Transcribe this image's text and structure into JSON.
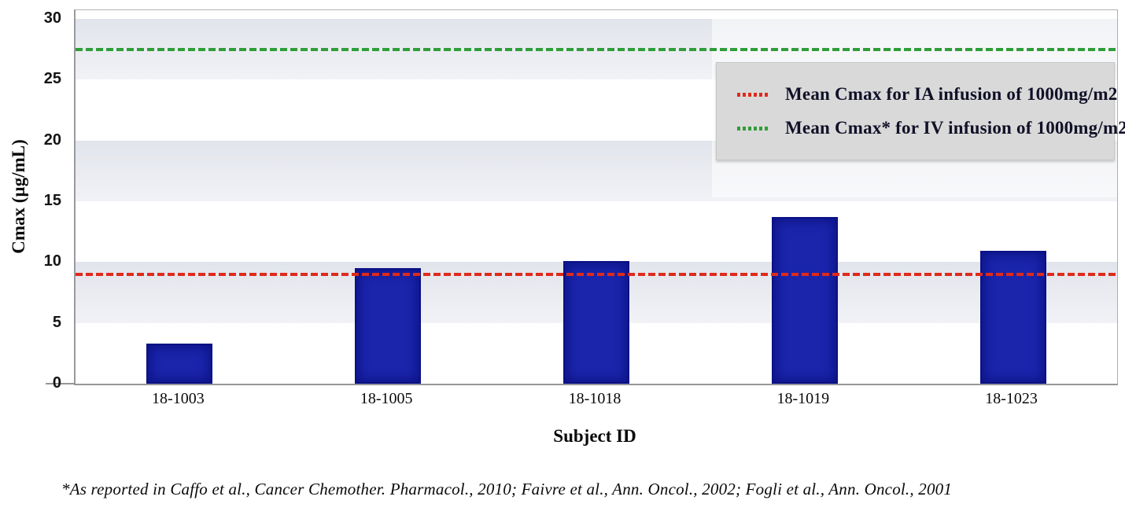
{
  "chart_data": {
    "type": "bar",
    "title": "",
    "xlabel": "Subject ID",
    "ylabel": "Cmax (µg/mL)",
    "categories": [
      "18-1003",
      "18-1005",
      "18-1018",
      "18-1019",
      "18-1023"
    ],
    "values": [
      3.3,
      9.5,
      10.1,
      13.7,
      10.9
    ],
    "ylim": [
      0,
      30
    ],
    "yticks": [
      0,
      5,
      10,
      15,
      20,
      25,
      30
    ],
    "grid": "alternating horizontal gray bands at 5-10, 15-20, 25-30",
    "bar_color": "#1b25ac",
    "band_color": "#e6e8ee",
    "legend_position": "top-right",
    "legend_background": "#d9d9d9",
    "reference_lines": [
      {
        "name": "ia-mean",
        "value": 9,
        "color": "#df2b1c",
        "style": "dashed",
        "label": "Mean Cmax for IA infusion of 1000mg/m2"
      },
      {
        "name": "iv-mean",
        "value": 27.5,
        "color": "#2f9d39",
        "style": "dashed",
        "label": "Mean Cmax* for IV infusion of 1000mg/m2"
      }
    ]
  },
  "footnote": "*As reported in Caffo et al., Cancer Chemother. Pharmacol., 2010; Faivre et al., Ann. Oncol., 2002; Fogli et al., Ann. Oncol., 2001"
}
